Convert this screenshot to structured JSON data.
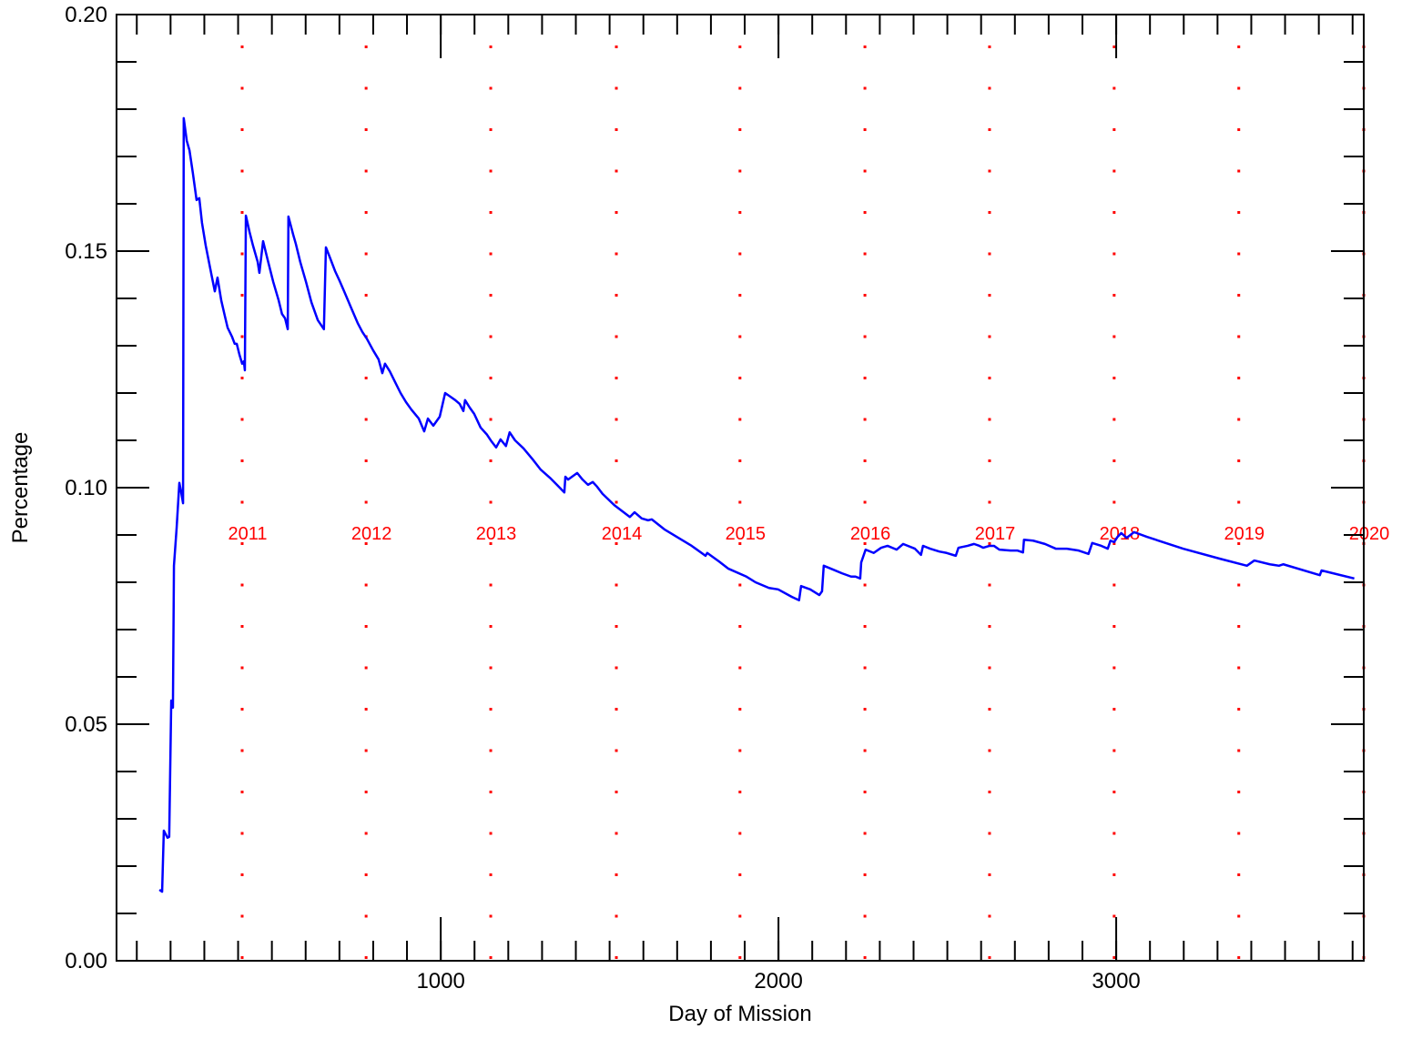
{
  "chart_data": {
    "type": "line",
    "xlabel": "Day of Mission",
    "ylabel": "Percentage",
    "xlim": [
      40,
      3733
    ],
    "ylim": [
      0,
      0.2
    ],
    "xticks": [
      1000,
      2000,
      3000
    ],
    "yticks": [
      {
        "value": 0,
        "label": "0.00"
      },
      {
        "value": 0.05,
        "label": "0.05"
      },
      {
        "value": 0.1,
        "label": "0.10"
      },
      {
        "value": 0.15,
        "label": "0.15"
      },
      {
        "value": 0.2,
        "label": "0.20"
      }
    ],
    "series": [
      {
        "color": "#0000ff",
        "x": [
          167,
          175,
          180,
          191,
          196,
          202,
          207,
          210,
          218,
          226,
          231,
          237,
          239,
          248,
          256,
          266,
          277,
          285,
          293,
          304,
          320,
          331,
          339,
          350,
          361,
          369,
          382,
          390,
          396,
          404,
          412,
          417,
          420,
          423,
          434,
          444,
          458,
          463,
          474,
          487,
          504,
          520,
          530,
          539,
          547,
          549,
          563,
          571,
          584,
          601,
          617,
          636,
          654,
          660,
          671,
          687,
          700,
          714,
          733,
          754,
          768,
          781,
          800,
          816,
          827,
          835,
          849,
          865,
          881,
          897,
          913,
          935,
          951,
          962,
          978,
          997,
          1013,
          1029,
          1043,
          1056,
          1067,
          1072,
          1086,
          1099,
          1118,
          1137,
          1150,
          1164,
          1177,
          1193,
          1204,
          1220,
          1245,
          1272,
          1296,
          1326,
          1344,
          1366,
          1369,
          1377,
          1404,
          1420,
          1436,
          1450,
          1463,
          1479,
          1514,
          1560,
          1574,
          1595,
          1614,
          1625,
          1662,
          1743,
          1784,
          1789,
          1824,
          1851,
          1905,
          1932,
          1972,
          1999,
          2040,
          2061,
          2067,
          2094,
          2121,
          2129,
          2134,
          2161,
          2188,
          2215,
          2228,
          2242,
          2245,
          2258,
          2282,
          2304,
          2323,
          2350,
          2369,
          2404,
          2422,
          2428,
          2449,
          2476,
          2498,
          2525,
          2533,
          2560,
          2579,
          2595,
          2606,
          2625,
          2638,
          2654,
          2687,
          2708,
          2724,
          2727,
          2754,
          2789,
          2821,
          2854,
          2889,
          2918,
          2929,
          2956,
          2975,
          2983,
          2994,
          3004,
          3015,
          3031,
          3053,
          3091,
          3198,
          3306,
          3387,
          3409,
          3455,
          3482,
          3495,
          3603,
          3608,
          3705
        ],
        "values": [
          0.015,
          0.0146,
          0.0275,
          0.026,
          0.0262,
          0.055,
          0.0535,
          0.0835,
          0.0915,
          0.101,
          0.0992,
          0.0967,
          0.1781,
          0.1733,
          0.1713,
          0.1665,
          0.1608,
          0.1612,
          0.156,
          0.1512,
          0.1454,
          0.1415,
          0.1444,
          0.1396,
          0.1362,
          0.1338,
          0.1319,
          0.1304,
          0.1304,
          0.1281,
          0.1262,
          0.1267,
          0.1248,
          0.1575,
          0.154,
          0.1512,
          0.1477,
          0.1454,
          0.1521,
          0.1483,
          0.1435,
          0.1396,
          0.1367,
          0.1358,
          0.1335,
          0.1573,
          0.1535,
          0.1515,
          0.1477,
          0.1435,
          0.1392,
          0.1354,
          0.1335,
          0.1508,
          0.1488,
          0.1458,
          0.1438,
          0.1415,
          0.1383,
          0.1348,
          0.1329,
          0.1315,
          0.129,
          0.1271,
          0.1242,
          0.1262,
          0.1246,
          0.1223,
          0.12,
          0.1181,
          0.1165,
          0.1146,
          0.1119,
          0.1146,
          0.1131,
          0.115,
          0.12,
          0.1192,
          0.1185,
          0.1177,
          0.1162,
          0.1185,
          0.1169,
          0.1156,
          0.1127,
          0.1112,
          0.1098,
          0.1085,
          0.1102,
          0.1088,
          0.1117,
          0.11,
          0.1083,
          0.106,
          0.1038,
          0.1019,
          0.1006,
          0.099,
          0.1023,
          0.1017,
          0.1031,
          0.1017,
          0.1006,
          0.1012,
          0.1002,
          0.0987,
          0.0963,
          0.0938,
          0.0948,
          0.0935,
          0.0931,
          0.0933,
          0.0912,
          0.0877,
          0.0856,
          0.0862,
          0.0844,
          0.0829,
          0.0812,
          0.08,
          0.0788,
          0.0785,
          0.0769,
          0.0762,
          0.0792,
          0.0785,
          0.0773,
          0.0781,
          0.0835,
          0.0827,
          0.0819,
          0.0812,
          0.0812,
          0.0808,
          0.0842,
          0.0869,
          0.0862,
          0.0873,
          0.0877,
          0.0869,
          0.0881,
          0.0871,
          0.0858,
          0.0877,
          0.0871,
          0.0865,
          0.0862,
          0.0856,
          0.0873,
          0.0877,
          0.0881,
          0.0877,
          0.0873,
          0.0877,
          0.0877,
          0.0869,
          0.0867,
          0.0867,
          0.0863,
          0.089,
          0.0888,
          0.0881,
          0.0871,
          0.0871,
          0.0867,
          0.086,
          0.0883,
          0.0877,
          0.0871,
          0.0888,
          0.0885,
          0.0896,
          0.0904,
          0.0894,
          0.0906,
          0.0896,
          0.0871,
          0.085,
          0.0835,
          0.0846,
          0.0838,
          0.0835,
          0.0838,
          0.0815,
          0.0825,
          0.0808
        ]
      }
    ],
    "year_markers": {
      "color": "#ff0000",
      "labels": [
        "2011",
        "2012",
        "2013",
        "2014",
        "2015",
        "2016",
        "2017",
        "2018",
        "2019",
        "2020"
      ],
      "x": [
        412,
        779,
        1148,
        1520,
        1886,
        2256,
        2625,
        2994,
        3363,
        3733
      ]
    }
  }
}
